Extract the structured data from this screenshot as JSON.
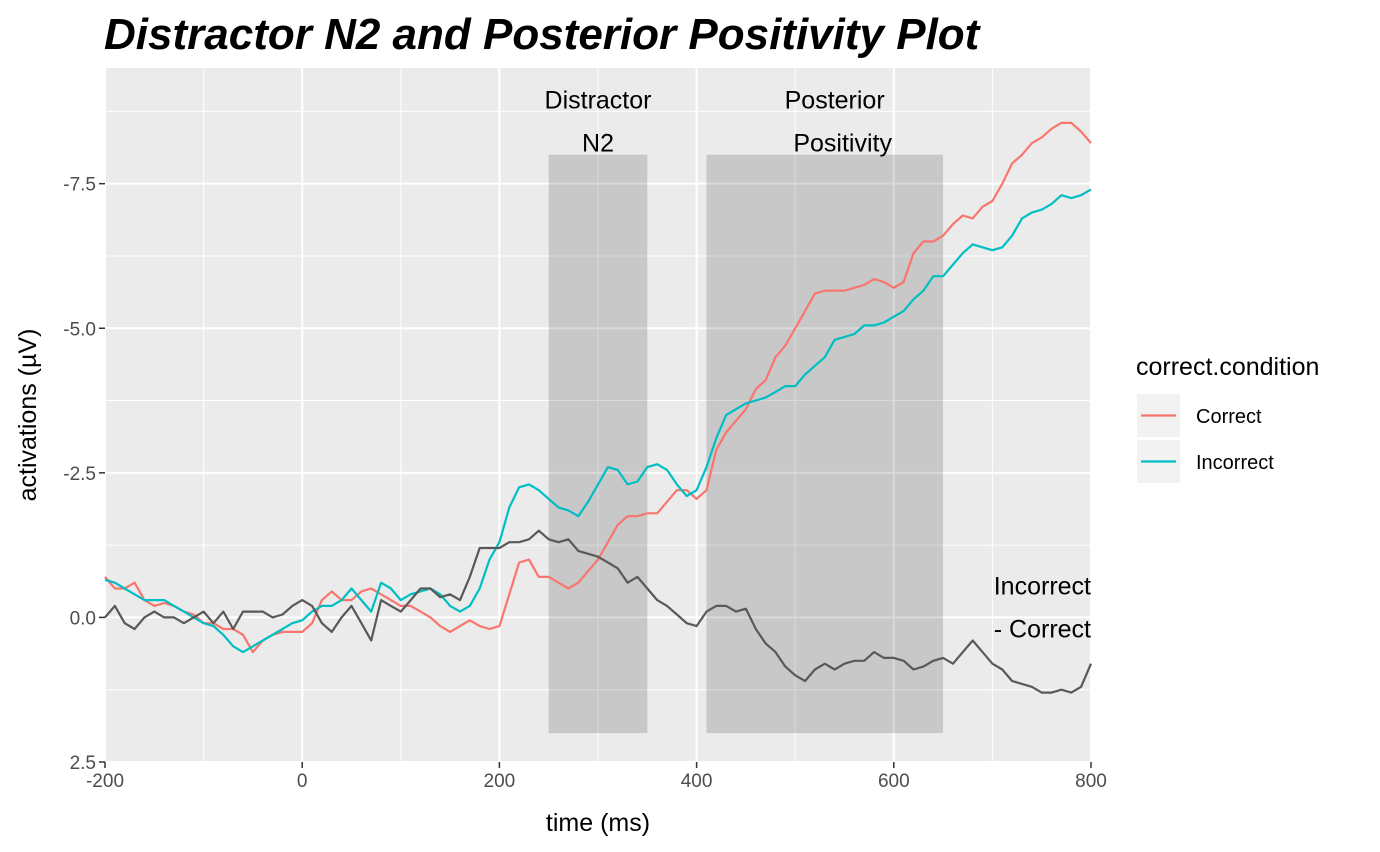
{
  "chart_data": {
    "type": "line",
    "title": "Distractor N2 and Posterior Positivity Plot",
    "xlabel": "time (ms)",
    "ylabel": "activations (µV)",
    "xlim": [
      -200,
      800
    ],
    "ylim": [
      2.5,
      -9.5
    ],
    "y_reversed": true,
    "grid": true,
    "x_ticks": [
      -200,
      0,
      200,
      400,
      600,
      800
    ],
    "x_tick_labels": [
      "-200",
      "0",
      "200",
      "400",
      "600",
      "800"
    ],
    "y_ticks": [
      2.5,
      0.0,
      -2.5,
      -5.0,
      -7.5
    ],
    "y_tick_labels": [
      "2.5",
      "0.0",
      "-2.5",
      "-5.0",
      "-7.5"
    ],
    "shaded_windows": [
      {
        "x": [
          250,
          350
        ],
        "y": [
          2.0,
          -8.0
        ]
      },
      {
        "x": [
          410,
          650
        ],
        "y": [
          2.0,
          -8.0
        ]
      }
    ],
    "annotations": [
      {
        "lines": [
          "Distractor",
          "N2"
        ],
        "x": 300,
        "y": -8.8
      },
      {
        "lines": [
          "Posterior",
          "Positivity"
        ],
        "x": 540,
        "y": -8.8
      },
      {
        "lines": [
          "Incorrect",
          "- Correct"
        ],
        "x": 800,
        "y": -0.4
      }
    ],
    "legend": {
      "title": "correct.condition",
      "position": "right"
    },
    "series": [
      {
        "name": "Correct",
        "color": "#F8766D",
        "x": [
          -200,
          -190,
          -180,
          -170,
          -160,
          -150,
          -140,
          -130,
          -120,
          -110,
          -100,
          -90,
          -80,
          -70,
          -60,
          -50,
          -40,
          -30,
          -20,
          -10,
          0,
          10,
          20,
          30,
          40,
          50,
          60,
          70,
          80,
          90,
          100,
          110,
          120,
          130,
          140,
          150,
          160,
          170,
          180,
          190,
          200,
          210,
          220,
          230,
          240,
          250,
          260,
          270,
          280,
          290,
          300,
          310,
          320,
          330,
          340,
          350,
          360,
          370,
          380,
          390,
          400,
          410,
          420,
          430,
          440,
          450,
          460,
          470,
          480,
          490,
          500,
          510,
          520,
          530,
          540,
          550,
          560,
          570,
          580,
          590,
          600,
          610,
          620,
          630,
          640,
          650,
          660,
          670,
          680,
          690,
          700,
          710,
          720,
          730,
          740,
          750,
          760,
          770,
          780,
          790,
          800
        ],
        "y": [
          -0.7,
          -0.5,
          -0.5,
          -0.6,
          -0.3,
          -0.2,
          -0.25,
          -0.2,
          -0.1,
          -0.05,
          0.1,
          0.1,
          0.2,
          0.2,
          0.3,
          0.6,
          0.4,
          0.3,
          0.25,
          0.25,
          0.25,
          0.1,
          -0.3,
          -0.45,
          -0.3,
          -0.3,
          -0.45,
          -0.5,
          -0.4,
          -0.3,
          -0.2,
          -0.2,
          -0.1,
          0.0,
          0.15,
          0.25,
          0.15,
          0.05,
          0.15,
          0.2,
          0.15,
          -0.4,
          -0.95,
          -1.0,
          -0.7,
          -0.7,
          -0.6,
          -0.5,
          -0.6,
          -0.8,
          -1.0,
          -1.3,
          -1.6,
          -1.75,
          -1.75,
          -1.8,
          -1.8,
          -2.0,
          -2.2,
          -2.2,
          -2.05,
          -2.2,
          -2.9,
          -3.2,
          -3.4,
          -3.6,
          -3.95,
          -4.1,
          -4.5,
          -4.7,
          -5.0,
          -5.3,
          -5.6,
          -5.65,
          -5.65,
          -5.65,
          -5.7,
          -5.75,
          -5.85,
          -5.8,
          -5.7,
          -5.8,
          -6.3,
          -6.5,
          -6.5,
          -6.6,
          -6.8,
          -6.95,
          -6.9,
          -7.1,
          -7.2,
          -7.5,
          -7.85,
          -8.0,
          -8.2,
          -8.3,
          -8.45,
          -8.55,
          -8.55,
          -8.4,
          -8.2
        ]
      },
      {
        "name": "Incorrect",
        "color": "#00BFC4",
        "x": [
          -200,
          -190,
          -180,
          -170,
          -160,
          -150,
          -140,
          -130,
          -120,
          -110,
          -100,
          -90,
          -80,
          -70,
          -60,
          -50,
          -40,
          -30,
          -20,
          -10,
          0,
          10,
          20,
          30,
          40,
          50,
          60,
          70,
          80,
          90,
          100,
          110,
          120,
          130,
          140,
          150,
          160,
          170,
          180,
          190,
          200,
          210,
          220,
          230,
          240,
          250,
          260,
          270,
          280,
          290,
          300,
          310,
          320,
          330,
          340,
          350,
          360,
          370,
          380,
          390,
          400,
          410,
          420,
          430,
          440,
          450,
          460,
          470,
          480,
          490,
          500,
          510,
          520,
          530,
          540,
          550,
          560,
          570,
          580,
          590,
          600,
          610,
          620,
          630,
          640,
          650,
          660,
          670,
          680,
          690,
          700,
          710,
          720,
          730,
          740,
          750,
          760,
          770,
          780,
          790,
          800
        ],
        "y": [
          -0.65,
          -0.6,
          -0.5,
          -0.4,
          -0.3,
          -0.3,
          -0.3,
          -0.2,
          -0.1,
          0.0,
          0.1,
          0.15,
          0.3,
          0.5,
          0.6,
          0.5,
          0.4,
          0.3,
          0.2,
          0.1,
          0.05,
          -0.1,
          -0.2,
          -0.2,
          -0.3,
          -0.5,
          -0.3,
          -0.1,
          -0.6,
          -0.5,
          -0.3,
          -0.4,
          -0.45,
          -0.5,
          -0.4,
          -0.2,
          -0.1,
          -0.2,
          -0.5,
          -1.0,
          -1.3,
          -1.9,
          -2.25,
          -2.3,
          -2.2,
          -2.05,
          -1.9,
          -1.85,
          -1.75,
          -2.0,
          -2.3,
          -2.6,
          -2.55,
          -2.3,
          -2.35,
          -2.6,
          -2.65,
          -2.55,
          -2.3,
          -2.1,
          -2.2,
          -2.6,
          -3.1,
          -3.5,
          -3.6,
          -3.7,
          -3.75,
          -3.8,
          -3.9,
          -4.0,
          -4.0,
          -4.2,
          -4.35,
          -4.5,
          -4.8,
          -4.85,
          -4.9,
          -5.05,
          -5.05,
          -5.1,
          -5.2,
          -5.3,
          -5.5,
          -5.65,
          -5.9,
          -5.9,
          -6.1,
          -6.3,
          -6.45,
          -6.4,
          -6.35,
          -6.4,
          -6.6,
          -6.9,
          -7.0,
          -7.05,
          -7.15,
          -7.3,
          -7.25,
          -7.3,
          -7.4
        ]
      },
      {
        "name": "Incorrect - Correct",
        "color": "#595959",
        "x": [
          -200,
          -190,
          -180,
          -170,
          -160,
          -150,
          -140,
          -130,
          -120,
          -110,
          -100,
          -90,
          -80,
          -70,
          -60,
          -50,
          -40,
          -30,
          -20,
          -10,
          0,
          10,
          20,
          30,
          40,
          50,
          60,
          70,
          80,
          90,
          100,
          110,
          120,
          130,
          140,
          150,
          160,
          170,
          180,
          190,
          200,
          210,
          220,
          230,
          240,
          250,
          260,
          270,
          280,
          290,
          300,
          310,
          320,
          330,
          340,
          350,
          360,
          370,
          380,
          390,
          400,
          410,
          420,
          430,
          440,
          450,
          460,
          470,
          480,
          490,
          500,
          510,
          520,
          530,
          540,
          550,
          560,
          570,
          580,
          590,
          600,
          610,
          620,
          630,
          640,
          650,
          660,
          670,
          680,
          690,
          700,
          710,
          720,
          730,
          740,
          750,
          760,
          770,
          780,
          790,
          800
        ],
        "y": [
          0.0,
          -0.2,
          0.1,
          0.2,
          0.0,
          -0.1,
          0.0,
          0.0,
          0.1,
          0.0,
          -0.1,
          0.1,
          -0.1,
          0.2,
          -0.1,
          -0.1,
          -0.1,
          0.0,
          -0.05,
          -0.2,
          -0.3,
          -0.2,
          0.1,
          0.25,
          0.0,
          -0.2,
          0.1,
          0.4,
          -0.3,
          -0.2,
          -0.1,
          -0.3,
          -0.5,
          -0.5,
          -0.35,
          -0.4,
          -0.3,
          -0.7,
          -1.2,
          -1.2,
          -1.2,
          -1.3,
          -1.3,
          -1.35,
          -1.5,
          -1.35,
          -1.3,
          -1.35,
          -1.15,
          -1.1,
          -1.05,
          -0.95,
          -0.85,
          -0.6,
          -0.7,
          -0.5,
          -0.3,
          -0.2,
          -0.05,
          0.1,
          0.15,
          -0.1,
          -0.2,
          -0.2,
          -0.1,
          -0.15,
          0.2,
          0.45,
          0.6,
          0.85,
          1.0,
          1.1,
          0.9,
          0.8,
          0.9,
          0.8,
          0.75,
          0.75,
          0.6,
          0.7,
          0.7,
          0.75,
          0.9,
          0.85,
          0.75,
          0.7,
          0.8,
          0.6,
          0.4,
          0.6,
          0.8,
          0.9,
          1.1,
          1.15,
          1.2,
          1.3,
          1.3,
          1.25,
          1.3,
          1.2,
          0.8
        ]
      }
    ]
  }
}
